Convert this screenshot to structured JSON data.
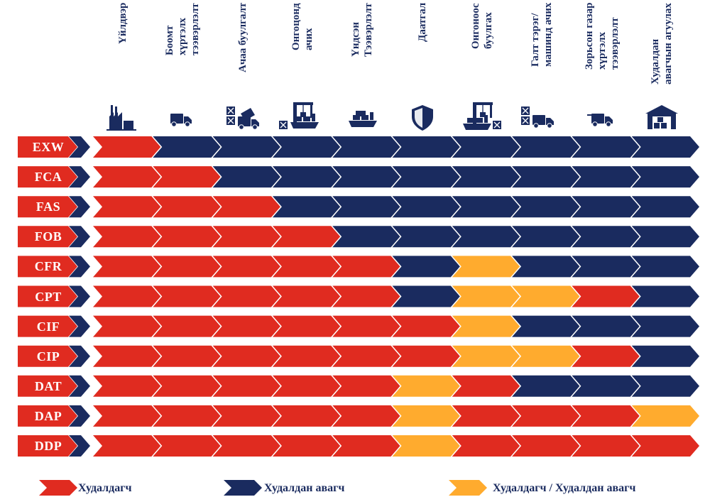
{
  "colors": {
    "seller": "#e02b20",
    "buyer": "#1a2b5f",
    "shared": "#ffab2e"
  },
  "columns": [
    {
      "label": "Үйлдвэр",
      "icon": "factory-icon"
    },
    {
      "label": "Боомт\nхүртэлх\nтээвэрлэлт",
      "icon": "delivery-truck-icon"
    },
    {
      "label": "Ачаа буулгалт",
      "icon": "cargo-unloading-icon"
    },
    {
      "label": "Онгоцонд\nачих",
      "icon": "port-crane-loading-icon"
    },
    {
      "label": "Үндсэн\nТээвэрлэлт",
      "icon": "cargo-ship-icon"
    },
    {
      "label": "Даатгал",
      "icon": "insurance-shield-icon"
    },
    {
      "label": "Онгоноос\nбуулгах",
      "icon": "port-crane-unloading-icon"
    },
    {
      "label": "Галт тэрэг/\nмашинд ачих",
      "icon": "train-truck-loading-icon"
    },
    {
      "label": "Зорьсон газар\nхүртэлх\nтээвэрлэлт",
      "icon": "destination-truck-icon"
    },
    {
      "label": "Худалдан\nавагчын агуулах",
      "icon": "warehouse-icon"
    }
  ],
  "rows": [
    {
      "term": "EXW",
      "cells": [
        "S",
        "B",
        "B",
        "B",
        "B",
        "B",
        "B",
        "B",
        "B",
        "B"
      ]
    },
    {
      "term": "FCA",
      "cells": [
        "S",
        "S",
        "B",
        "B",
        "B",
        "B",
        "B",
        "B",
        "B",
        "B"
      ]
    },
    {
      "term": "FAS",
      "cells": [
        "S",
        "S",
        "S",
        "B",
        "B",
        "B",
        "B",
        "B",
        "B",
        "B"
      ]
    },
    {
      "term": "FOB",
      "cells": [
        "S",
        "S",
        "S",
        "S",
        "B",
        "B",
        "B",
        "B",
        "B",
        "B"
      ]
    },
    {
      "term": "CFR",
      "cells": [
        "S",
        "S",
        "S",
        "S",
        "S",
        "B",
        "Y",
        "B",
        "B",
        "B"
      ]
    },
    {
      "term": "CPT",
      "cells": [
        "S",
        "S",
        "S",
        "S",
        "S",
        "B",
        "Y",
        "Y",
        "S",
        "B"
      ]
    },
    {
      "term": "CIF",
      "cells": [
        "S",
        "S",
        "S",
        "S",
        "S",
        "S",
        "Y",
        "B",
        "B",
        "B"
      ]
    },
    {
      "term": "CIP",
      "cells": [
        "S",
        "S",
        "S",
        "S",
        "S",
        "S",
        "Y",
        "Y",
        "S",
        "B"
      ]
    },
    {
      "term": "DAT",
      "cells": [
        "S",
        "S",
        "S",
        "S",
        "S",
        "Y",
        "S",
        "B",
        "B",
        "B"
      ]
    },
    {
      "term": "DAP",
      "cells": [
        "S",
        "S",
        "S",
        "S",
        "S",
        "Y",
        "S",
        "S",
        "S",
        "Y"
      ]
    },
    {
      "term": "DDP",
      "cells": [
        "S",
        "S",
        "S",
        "S",
        "S",
        "Y",
        "S",
        "S",
        "S",
        "S"
      ]
    }
  ],
  "legend": [
    {
      "key": "S",
      "label": "Худалдагч"
    },
    {
      "key": "B",
      "label": "Худалдан авагч"
    },
    {
      "key": "Y",
      "label": "Худалдагч / Худалдан авагч"
    }
  ]
}
